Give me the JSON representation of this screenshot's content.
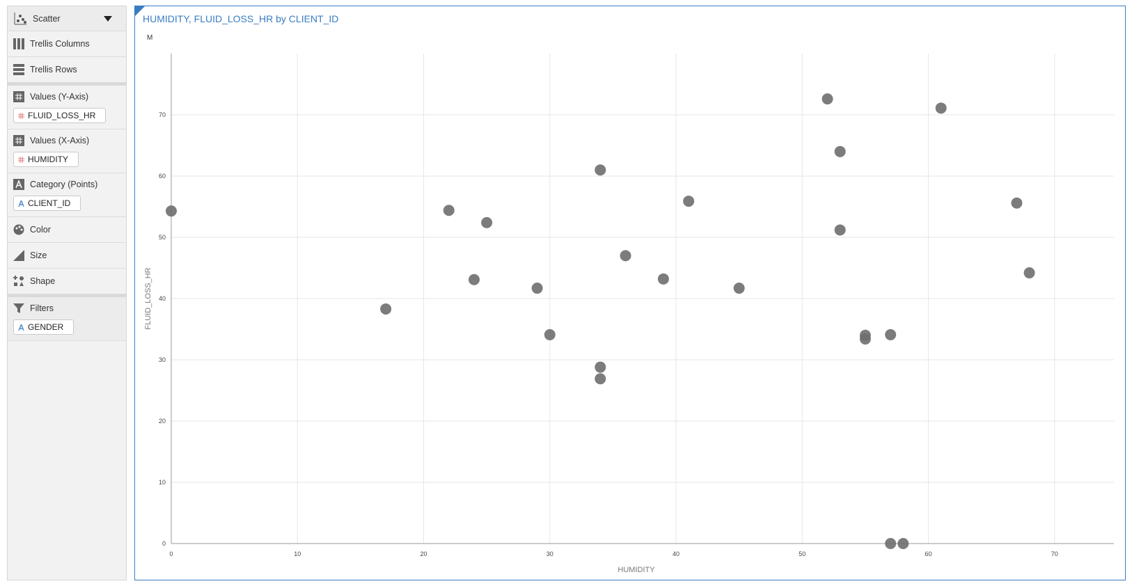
{
  "sidebar": {
    "chart_type": "Scatter",
    "trellis_columns": "Trellis Columns",
    "trellis_rows": "Trellis Rows",
    "y_values": {
      "label": "Values (Y-Axis)",
      "field": "FLUID_LOSS_HR"
    },
    "x_values": {
      "label": "Values (X-Axis)",
      "field": "HUMIDITY"
    },
    "category": {
      "label": "Category (Points)",
      "field": "CLIENT_ID"
    },
    "color": "Color",
    "size": "Size",
    "shape": "Shape",
    "filters": {
      "label": "Filters",
      "field": "GENDER"
    }
  },
  "chart_data": {
    "type": "scatter",
    "title": "HUMIDITY, FLUID_LOSS_HR by CLIENT_ID",
    "panel_label": "M",
    "x_label": "HUMIDITY",
    "y_label": "FLUID_LOSS_HR",
    "x": [
      0,
      17,
      22,
      24,
      25,
      29,
      30,
      34,
      34,
      34,
      36,
      39,
      41,
      45,
      52,
      53,
      53,
      55,
      55,
      57,
      57,
      58,
      61,
      67,
      68
    ],
    "values": [
      54.3,
      38.3,
      54.4,
      43.1,
      52.4,
      41.7,
      34.1,
      61.0,
      28.8,
      26.9,
      47.0,
      43.2,
      55.9,
      41.7,
      72.6,
      64.0,
      51.2,
      34.0,
      33.4,
      34.1,
      0,
      0,
      71.1,
      55.6,
      44.2
    ],
    "color": "#6e6e6e",
    "xlim": [
      0,
      74.7
    ],
    "ylim": [
      0,
      80
    ],
    "xticks": [
      0,
      10,
      20,
      30,
      40,
      50,
      60,
      70
    ],
    "yticks": [
      0,
      10,
      20,
      30,
      40,
      50,
      60,
      70
    ],
    "grid": true
  }
}
